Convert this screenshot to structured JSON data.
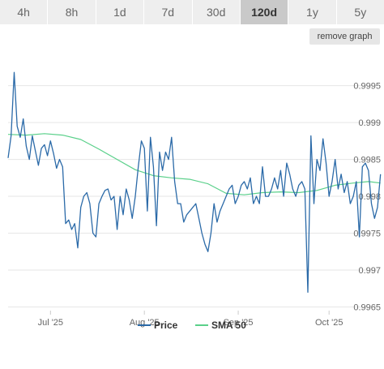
{
  "tabs": [
    {
      "label": "4h",
      "active": false
    },
    {
      "label": "8h",
      "active": false
    },
    {
      "label": "1d",
      "active": false
    },
    {
      "label": "7d",
      "active": false
    },
    {
      "label": "30d",
      "active": false
    },
    {
      "label": "120d",
      "active": true
    },
    {
      "label": "1y",
      "active": false
    },
    {
      "label": "5y",
      "active": false
    }
  ],
  "remove_graph_label": "remove graph",
  "colors": {
    "price": "#2b6aa8",
    "sma": "#5ad08a",
    "grid": "#e6e6e6"
  },
  "chart_data": {
    "type": "line",
    "x_range": [
      "2025-06-17",
      "2025-10-17"
    ],
    "x_ticks": [
      {
        "date": "2025-07-01",
        "label": "Jul '25"
      },
      {
        "date": "2025-08-01",
        "label": "Aug '25"
      },
      {
        "date": "2025-09-01",
        "label": "Sep '25"
      },
      {
        "date": "2025-10-01",
        "label": "Oct '25"
      }
    ],
    "y_range": [
      0.99645,
      0.99998
    ],
    "y_ticks": [
      {
        "value": 0.9965,
        "label": "0.9965"
      },
      {
        "value": 0.997,
        "label": "0.997"
      },
      {
        "value": 0.9975,
        "label": "0.9975"
      },
      {
        "value": 0.998,
        "label": "0.998"
      },
      {
        "value": 0.9985,
        "label": "0.9985"
      },
      {
        "value": 0.999,
        "label": "0.999"
      },
      {
        "value": 0.9995,
        "label": "0.9995"
      }
    ],
    "grid": true,
    "legend_position": "bottom-center",
    "series": [
      {
        "name": "Price",
        "color": "#2b6aa8",
        "points": [
          [
            "2025-06-17",
            0.99852
          ],
          [
            "2025-06-18",
            0.99882
          ],
          [
            "2025-06-19",
            0.99968
          ],
          [
            "2025-06-20",
            0.99895
          ],
          [
            "2025-06-21",
            0.9988
          ],
          [
            "2025-06-22",
            0.99905
          ],
          [
            "2025-06-23",
            0.99868
          ],
          [
            "2025-06-24",
            0.9985
          ],
          [
            "2025-06-25",
            0.99882
          ],
          [
            "2025-06-26",
            0.99862
          ],
          [
            "2025-06-27",
            0.99842
          ],
          [
            "2025-06-28",
            0.99865
          ],
          [
            "2025-06-29",
            0.9987
          ],
          [
            "2025-06-30",
            0.99855
          ],
          [
            "2025-07-01",
            0.99875
          ],
          [
            "2025-07-02",
            0.99858
          ],
          [
            "2025-07-03",
            0.99838
          ],
          [
            "2025-07-04",
            0.9985
          ],
          [
            "2025-07-05",
            0.9984
          ],
          [
            "2025-07-06",
            0.99763
          ],
          [
            "2025-07-07",
            0.99768
          ],
          [
            "2025-07-08",
            0.99755
          ],
          [
            "2025-07-09",
            0.99763
          ],
          [
            "2025-07-10",
            0.9973
          ],
          [
            "2025-07-11",
            0.99785
          ],
          [
            "2025-07-12",
            0.998
          ],
          [
            "2025-07-13",
            0.99805
          ],
          [
            "2025-07-14",
            0.9979
          ],
          [
            "2025-07-15",
            0.9975
          ],
          [
            "2025-07-16",
            0.99745
          ],
          [
            "2025-07-17",
            0.9979
          ],
          [
            "2025-07-18",
            0.998
          ],
          [
            "2025-07-19",
            0.99808
          ],
          [
            "2025-07-20",
            0.9981
          ],
          [
            "2025-07-21",
            0.99795
          ],
          [
            "2025-07-22",
            0.998
          ],
          [
            "2025-07-23",
            0.99755
          ],
          [
            "2025-07-24",
            0.998
          ],
          [
            "2025-07-25",
            0.99775
          ],
          [
            "2025-07-26",
            0.9981
          ],
          [
            "2025-07-27",
            0.99795
          ],
          [
            "2025-07-28",
            0.9977
          ],
          [
            "2025-07-29",
            0.998
          ],
          [
            "2025-07-30",
            0.9984
          ],
          [
            "2025-07-31",
            0.99875
          ],
          [
            "2025-08-01",
            0.99865
          ],
          [
            "2025-08-02",
            0.9978
          ],
          [
            "2025-08-03",
            0.9988
          ],
          [
            "2025-08-04",
            0.9984
          ],
          [
            "2025-08-05",
            0.9976
          ],
          [
            "2025-08-06",
            0.9986
          ],
          [
            "2025-08-07",
            0.99835
          ],
          [
            "2025-08-08",
            0.9986
          ],
          [
            "2025-08-09",
            0.9985
          ],
          [
            "2025-08-10",
            0.9988
          ],
          [
            "2025-08-11",
            0.9982
          ],
          [
            "2025-08-12",
            0.9979
          ],
          [
            "2025-08-13",
            0.9979
          ],
          [
            "2025-08-14",
            0.99765
          ],
          [
            "2025-08-15",
            0.99775
          ],
          [
            "2025-08-16",
            0.9978
          ],
          [
            "2025-08-17",
            0.99785
          ],
          [
            "2025-08-18",
            0.9979
          ],
          [
            "2025-08-19",
            0.9977
          ],
          [
            "2025-08-20",
            0.9975
          ],
          [
            "2025-08-21",
            0.99735
          ],
          [
            "2025-08-22",
            0.99725
          ],
          [
            "2025-08-23",
            0.9975
          ],
          [
            "2025-08-24",
            0.9979
          ],
          [
            "2025-08-25",
            0.99765
          ],
          [
            "2025-08-26",
            0.9978
          ],
          [
            "2025-08-27",
            0.9979
          ],
          [
            "2025-08-28",
            0.998
          ],
          [
            "2025-08-29",
            0.9981
          ],
          [
            "2025-08-30",
            0.99815
          ],
          [
            "2025-08-31",
            0.9979
          ],
          [
            "2025-09-01",
            0.998
          ],
          [
            "2025-09-02",
            0.99815
          ],
          [
            "2025-09-03",
            0.9982
          ],
          [
            "2025-09-04",
            0.9981
          ],
          [
            "2025-09-05",
            0.99825
          ],
          [
            "2025-09-06",
            0.9979
          ],
          [
            "2025-09-07",
            0.998
          ],
          [
            "2025-09-08",
            0.9979
          ],
          [
            "2025-09-09",
            0.9984
          ],
          [
            "2025-09-10",
            0.998
          ],
          [
            "2025-09-11",
            0.998
          ],
          [
            "2025-09-12",
            0.9981
          ],
          [
            "2025-09-13",
            0.99825
          ],
          [
            "2025-09-14",
            0.9981
          ],
          [
            "2025-09-15",
            0.99835
          ],
          [
            "2025-09-16",
            0.998
          ],
          [
            "2025-09-17",
            0.99845
          ],
          [
            "2025-09-18",
            0.9983
          ],
          [
            "2025-09-19",
            0.9981
          ],
          [
            "2025-09-20",
            0.998
          ],
          [
            "2025-09-21",
            0.99815
          ],
          [
            "2025-09-22",
            0.9982
          ],
          [
            "2025-09-23",
            0.9981
          ],
          [
            "2025-09-24",
            0.9967
          ],
          [
            "2025-09-25",
            0.99882
          ],
          [
            "2025-09-26",
            0.9979
          ],
          [
            "2025-09-27",
            0.9985
          ],
          [
            "2025-09-28",
            0.99835
          ],
          [
            "2025-09-29",
            0.99878
          ],
          [
            "2025-09-30",
            0.99845
          ],
          [
            "2025-10-01",
            0.998
          ],
          [
            "2025-10-02",
            0.9982
          ],
          [
            "2025-10-03",
            0.9985
          ],
          [
            "2025-10-04",
            0.9981
          ],
          [
            "2025-10-05",
            0.9983
          ],
          [
            "2025-10-06",
            0.99805
          ],
          [
            "2025-10-07",
            0.9982
          ],
          [
            "2025-10-08",
            0.9979
          ],
          [
            "2025-10-09",
            0.998
          ],
          [
            "2025-10-10",
            0.9982
          ],
          [
            "2025-10-11",
            0.99745
          ],
          [
            "2025-10-12",
            0.9984
          ],
          [
            "2025-10-13",
            0.99845
          ],
          [
            "2025-10-14",
            0.99835
          ],
          [
            "2025-10-15",
            0.9979
          ],
          [
            "2025-10-16",
            0.9977
          ],
          [
            "2025-10-17",
            0.99785
          ],
          [
            "2025-10-18",
            0.9983
          ]
        ]
      },
      {
        "name": "SMA 50",
        "color": "#5ad08a",
        "points": [
          [
            "2025-06-17",
            0.99884
          ],
          [
            "2025-06-23",
            0.99883
          ],
          [
            "2025-06-29",
            0.99885
          ],
          [
            "2025-07-05",
            0.99883
          ],
          [
            "2025-07-11",
            0.99877
          ],
          [
            "2025-07-17",
            0.99864
          ],
          [
            "2025-07-23",
            0.9985
          ],
          [
            "2025-07-29",
            0.99836
          ],
          [
            "2025-08-04",
            0.99828
          ],
          [
            "2025-08-10",
            0.99825
          ],
          [
            "2025-08-16",
            0.99823
          ],
          [
            "2025-08-22",
            0.99817
          ],
          [
            "2025-08-28",
            0.99804
          ],
          [
            "2025-09-03",
            0.99802
          ],
          [
            "2025-09-09",
            0.99805
          ],
          [
            "2025-09-15",
            0.99806
          ],
          [
            "2025-09-21",
            0.99805
          ],
          [
            "2025-09-27",
            0.99808
          ],
          [
            "2025-10-03",
            0.99815
          ],
          [
            "2025-10-09",
            0.99818
          ],
          [
            "2025-10-14",
            0.9982
          ],
          [
            "2025-10-18",
            0.99818
          ]
        ]
      }
    ]
  }
}
